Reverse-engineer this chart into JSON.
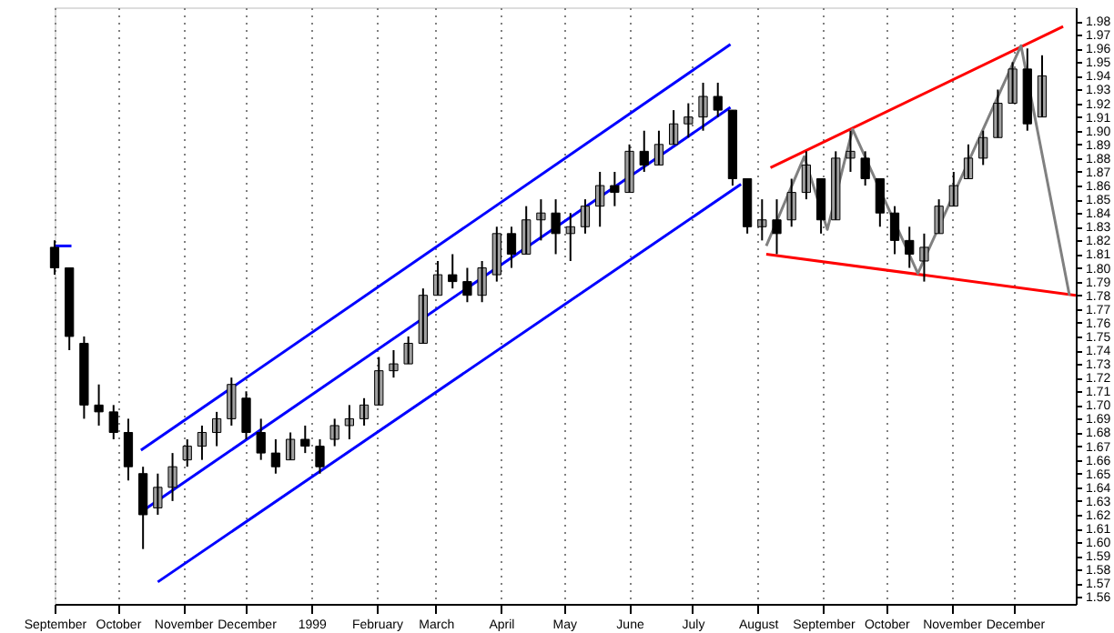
{
  "chart_data": {
    "type": "candlestick",
    "xlim": [
      "1998-09-01",
      "1999-12-30"
    ],
    "xticks": [
      {
        "value": "1998-09-01",
        "label": "September"
      },
      {
        "value": "1998-10-01",
        "label": "October"
      },
      {
        "value": "1998-11-01",
        "label": "November"
      },
      {
        "value": "1998-12-01",
        "label": "December"
      },
      {
        "value": "1999-01-01",
        "label": "1999"
      },
      {
        "value": "1999-02-01",
        "label": "February"
      },
      {
        "value": "1999-03-01",
        "label": "March"
      },
      {
        "value": "1999-04-01",
        "label": "April"
      },
      {
        "value": "1999-05-01",
        "label": "May"
      },
      {
        "value": "1999-06-01",
        "label": "June"
      },
      {
        "value": "1999-07-01",
        "label": "July"
      },
      {
        "value": "1999-08-01",
        "label": "August"
      },
      {
        "value": "1999-09-01",
        "label": "September"
      },
      {
        "value": "1999-10-01",
        "label": "October"
      },
      {
        "value": "1999-11-01",
        "label": "November"
      },
      {
        "value": "1999-12-01",
        "label": "December"
      }
    ],
    "ylim": [
      1.555,
      1.99
    ],
    "yticks": [
      1.56,
      1.57,
      1.58,
      1.59,
      {
        "value": 1.6,
        "label": "1.60"
      },
      1.61,
      1.62,
      1.63,
      1.64,
      1.65,
      1.66,
      1.67,
      1.68,
      1.69,
      {
        "value": 1.7,
        "label": "1.70"
      },
      1.71,
      1.72,
      1.73,
      1.74,
      1.75,
      1.76,
      1.77,
      1.78,
      1.79,
      {
        "value": 1.8,
        "label": "1.80"
      },
      1.81,
      1.82,
      1.83,
      1.84,
      1.85,
      1.86,
      1.87,
      1.88,
      1.89,
      {
        "value": 1.9,
        "label": "1.90"
      },
      1.91,
      1.92,
      1.93,
      1.94,
      1.95,
      1.96,
      1.97,
      1.98
    ],
    "grid": "x",
    "series": [
      {
        "type": "line",
        "color": "#0000ff",
        "x": [
          "1998-09-01",
          "1998-09-09"
        ],
        "values": [
          1.816,
          1.816
        ]
      },
      {
        "type": "line",
        "color": "#0000ff",
        "x": [
          "1998-10-12",
          "1999-07-19"
        ],
        "values": [
          1.667,
          1.963
        ]
      },
      {
        "type": "line",
        "color": "#0000ff",
        "x": [
          "1998-10-12",
          "1999-07-19"
        ],
        "values": [
          1.622,
          1.917
        ]
      },
      {
        "type": "line",
        "color": "#0000ff",
        "x": [
          "1998-10-20",
          "1999-07-24"
        ],
        "values": [
          1.571,
          1.861
        ]
      },
      {
        "type": "line",
        "color": "#ff0000",
        "x": [
          "1999-08-07",
          "1999-12-24"
        ],
        "values": [
          1.873,
          1.976
        ]
      },
      {
        "type": "line",
        "color": "#ff0000",
        "x": [
          "1999-08-05",
          "1999-12-30"
        ],
        "values": [
          1.81,
          1.78
        ]
      },
      {
        "type": "line",
        "color": "#808080",
        "x": [
          "1999-08-05",
          "1999-08-23",
          "1999-09-03",
          "1999-09-15",
          "1999-10-16",
          "1999-12-04",
          "1999-12-27"
        ],
        "values": [
          1.816,
          1.881,
          1.828,
          1.901,
          1.796,
          1.962,
          1.78
        ]
      }
    ],
    "x": [
      "1998-09-01",
      "1998-09-08",
      "1998-09-15",
      "1998-09-22",
      "1998-09-29",
      "1998-10-06",
      "1998-10-13",
      "1998-10-20",
      "1998-10-27",
      "1998-11-03",
      "1998-11-10",
      "1998-11-17",
      "1998-11-24",
      "1998-12-01",
      "1998-12-08",
      "1998-12-15",
      "1998-12-22",
      "1998-12-29",
      "1999-01-05",
      "1999-01-12",
      "1999-01-19",
      "1999-01-26",
      "1999-02-02",
      "1999-02-09",
      "1999-02-16",
      "1999-02-23",
      "1999-03-02",
      "1999-03-09",
      "1999-03-16",
      "1999-03-23",
      "1999-03-30",
      "1999-04-06",
      "1999-04-13",
      "1999-04-20",
      "1999-04-27",
      "1999-05-04",
      "1999-05-11",
      "1999-05-18",
      "1999-05-25",
      "1999-06-01",
      "1999-06-08",
      "1999-06-15",
      "1999-06-22",
      "1999-06-29",
      "1999-07-06",
      "1999-07-13",
      "1999-07-20",
      "1999-07-27",
      "1999-08-03",
      "1999-08-10",
      "1999-08-17",
      "1999-08-24",
      "1999-08-31",
      "1999-09-07",
      "1999-09-14",
      "1999-09-21",
      "1999-09-28",
      "1999-10-05",
      "1999-10-12",
      "1999-10-19",
      "1999-10-26",
      "1999-11-02",
      "1999-11-09",
      "1999-11-16",
      "1999-11-23",
      "1999-11-30",
      "1999-12-07",
      "1999-12-14"
    ],
    "ohlc": [
      [
        1.815,
        1.82,
        1.795,
        1.8
      ],
      [
        1.8,
        1.8,
        1.74,
        1.75
      ],
      [
        1.745,
        1.75,
        1.69,
        1.7
      ],
      [
        1.7,
        1.715,
        1.685,
        1.695
      ],
      [
        1.695,
        1.7,
        1.675,
        1.68
      ],
      [
        1.68,
        1.69,
        1.645,
        1.655
      ],
      [
        1.65,
        1.655,
        1.595,
        1.62
      ],
      [
        1.625,
        1.65,
        1.62,
        1.64
      ],
      [
        1.64,
        1.665,
        1.63,
        1.655
      ],
      [
        1.66,
        1.675,
        1.655,
        1.67
      ],
      [
        1.67,
        1.685,
        1.66,
        1.68
      ],
      [
        1.68,
        1.695,
        1.67,
        1.69
      ],
      [
        1.69,
        1.72,
        1.685,
        1.715
      ],
      [
        1.705,
        1.71,
        1.675,
        1.68
      ],
      [
        1.68,
        1.69,
        1.66,
        1.665
      ],
      [
        1.665,
        1.675,
        1.65,
        1.655
      ],
      [
        1.66,
        1.68,
        1.66,
        1.675
      ],
      [
        1.675,
        1.685,
        1.665,
        1.67
      ],
      [
        1.67,
        1.675,
        1.65,
        1.655
      ],
      [
        1.675,
        1.69,
        1.67,
        1.685
      ],
      [
        1.685,
        1.7,
        1.675,
        1.69
      ],
      [
        1.69,
        1.705,
        1.685,
        1.7
      ],
      [
        1.7,
        1.735,
        1.7,
        1.725
      ],
      [
        1.725,
        1.74,
        1.72,
        1.73
      ],
      [
        1.73,
        1.75,
        1.73,
        1.745
      ],
      [
        1.745,
        1.785,
        1.745,
        1.78
      ],
      [
        1.78,
        1.805,
        1.78,
        1.795
      ],
      [
        1.795,
        1.81,
        1.785,
        1.79
      ],
      [
        1.79,
        1.8,
        1.775,
        1.78
      ],
      [
        1.78,
        1.805,
        1.775,
        1.8
      ],
      [
        1.795,
        1.83,
        1.79,
        1.825
      ],
      [
        1.825,
        1.83,
        1.8,
        1.81
      ],
      [
        1.81,
        1.845,
        1.81,
        1.835
      ],
      [
        1.835,
        1.85,
        1.82,
        1.84
      ],
      [
        1.84,
        1.85,
        1.81,
        1.825
      ],
      [
        1.825,
        1.84,
        1.805,
        1.83
      ],
      [
        1.83,
        1.85,
        1.825,
        1.845
      ],
      [
        1.845,
        1.87,
        1.83,
        1.86
      ],
      [
        1.86,
        1.87,
        1.845,
        1.855
      ],
      [
        1.855,
        1.89,
        1.855,
        1.885
      ],
      [
        1.885,
        1.9,
        1.87,
        1.875
      ],
      [
        1.875,
        1.9,
        1.875,
        1.89
      ],
      [
        1.89,
        1.915,
        1.89,
        1.905
      ],
      [
        1.905,
        1.92,
        1.895,
        1.91
      ],
      [
        1.91,
        1.935,
        1.9,
        1.925
      ],
      [
        1.925,
        1.935,
        1.91,
        1.915
      ],
      [
        1.915,
        1.915,
        1.86,
        1.865
      ],
      [
        1.865,
        1.865,
        1.825,
        1.83
      ],
      [
        1.83,
        1.85,
        1.82,
        1.835
      ],
      [
        1.835,
        1.85,
        1.81,
        1.825
      ],
      [
        1.835,
        1.865,
        1.83,
        1.855
      ],
      [
        1.855,
        1.885,
        1.85,
        1.875
      ],
      [
        1.865,
        1.865,
        1.825,
        1.835
      ],
      [
        1.835,
        1.885,
        1.835,
        1.88
      ],
      [
        1.88,
        1.9,
        1.87,
        1.885
      ],
      [
        1.88,
        1.885,
        1.86,
        1.865
      ],
      [
        1.865,
        1.865,
        1.83,
        1.84
      ],
      [
        1.84,
        1.845,
        1.81,
        1.82
      ],
      [
        1.82,
        1.83,
        1.8,
        1.81
      ],
      [
        1.805,
        1.825,
        1.79,
        1.815
      ],
      [
        1.825,
        1.85,
        1.825,
        1.845
      ],
      [
        1.845,
        1.87,
        1.845,
        1.86
      ],
      [
        1.865,
        1.89,
        1.865,
        1.88
      ],
      [
        1.88,
        1.9,
        1.875,
        1.895
      ],
      [
        1.895,
        1.93,
        1.895,
        1.92
      ],
      [
        1.92,
        1.95,
        1.92,
        1.945
      ],
      [
        1.945,
        1.96,
        1.9,
        1.905
      ],
      [
        1.91,
        1.955,
        1.91,
        1.94
      ]
    ]
  }
}
